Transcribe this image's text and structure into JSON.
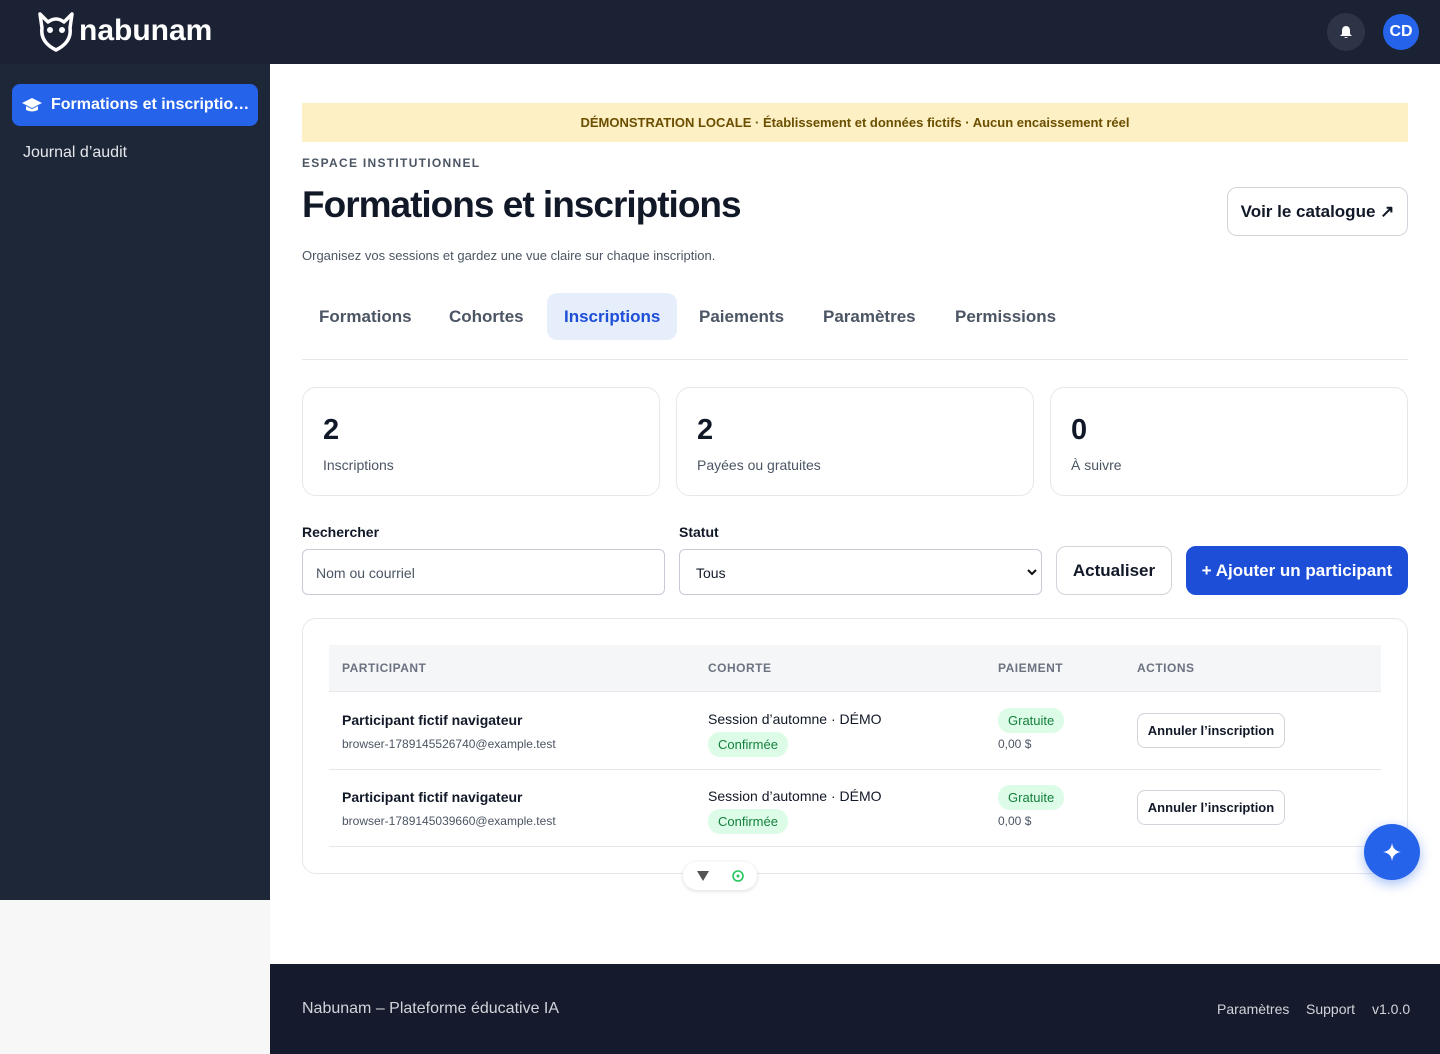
{
  "header": {
    "logo": "nabunam",
    "avatar": "CD"
  },
  "sidebar": {
    "items": [
      "Formations et inscriptio…",
      "Journal d’audit"
    ]
  },
  "banner": "DÉMONSTRATION LOCALE · Établissement et données fictifs · Aucun encaissement réel",
  "eyebrow": "ESPACE INSTITUTIONNEL",
  "title": "Formations et inscriptions",
  "catalog_button": "Voir le catalogue ↗",
  "subtitle": "Organisez vos sessions et gardez une vue claire sur chaque inscription.",
  "tabs": [
    "Formations",
    "Cohortes",
    "Inscriptions",
    "Paiements",
    "Paramètres",
    "Permissions"
  ],
  "stats": [
    {
      "value": "2",
      "label": "Inscriptions"
    },
    {
      "value": "2",
      "label": "Payées ou gratuites"
    },
    {
      "value": "0",
      "label": "À suivre"
    }
  ],
  "filters": {
    "search_label": "Rechercher",
    "search_placeholder": "Nom ou courriel",
    "status_label": "Statut",
    "status_value": "Tous",
    "refresh": "Actualiser",
    "add": "+ Ajouter un participant"
  },
  "table": {
    "headers": [
      "PARTICIPANT",
      "COHORTE",
      "PAIEMENT",
      "ACTIONS"
    ],
    "rows": [
      {
        "name": "Participant fictif navigateur",
        "email": "browser-1789145526740@example.test",
        "cohort": "Session d’automne · DÉMO",
        "cohort_status": "Confirmée",
        "payment": "Gratuite",
        "amount": "0,00 $",
        "action": "Annuler l’inscription"
      },
      {
        "name": "Participant fictif navigateur",
        "email": "browser-1789145039660@example.test",
        "cohort": "Session d’automne · DÉMO",
        "cohort_status": "Confirmée",
        "payment": "Gratuite",
        "amount": "0,00 $",
        "action": "Annuler l’inscription"
      }
    ]
  },
  "footer": {
    "left": "Nabunam – Plateforme éducative IA",
    "links": [
      "Paramètres",
      "Support",
      "v1.0.0"
    ]
  }
}
